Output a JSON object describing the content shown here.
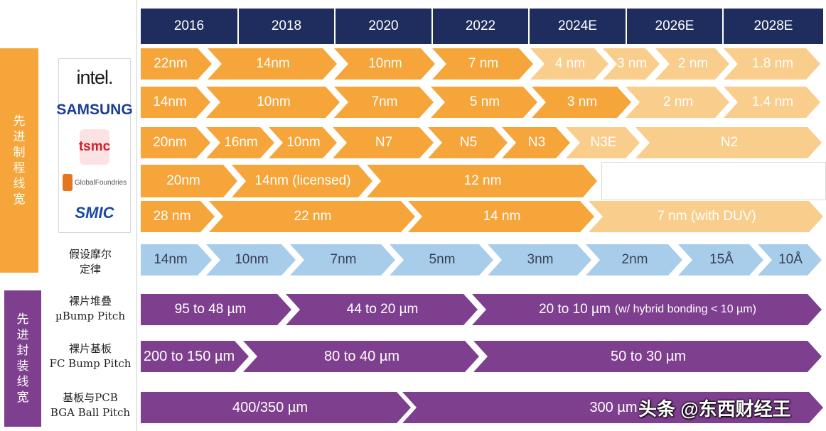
{
  "years": [
    "2016",
    "2018",
    "2020",
    "2022",
    "2024E",
    "2026E",
    "2028E"
  ],
  "categories": {
    "process": [
      "先",
      "进",
      "制",
      "程",
      "线",
      "宽"
    ],
    "packaging": [
      "先",
      "进",
      "封",
      "装",
      "线",
      "宽"
    ]
  },
  "colors": {
    "navy": "#1f2d5e",
    "orange": "#f5a53a",
    "light_orange": "#f9cd8c",
    "light_blue": "#a8cdea",
    "purple": "#7e3f8f"
  },
  "logos": {
    "intel": "intel.",
    "samsung": "SAMSUNG",
    "tsmc": "tsmc",
    "globalfoundries": "GlobalFoundries",
    "smic": "SMIC"
  },
  "row_labels": {
    "moore": [
      "假设摩尔",
      "定律"
    ],
    "ubump": [
      "裸片堆叠",
      "µBump Pitch"
    ],
    "fcbump": [
      "裸片基板",
      "FC Bump Pitch"
    ],
    "bga": [
      "基板与PCB",
      "BGA Ball Pitch"
    ]
  },
  "rows": {
    "intel": [
      "22nm",
      "14nm",
      "10nm",
      "7 nm",
      "4 nm",
      "3 nm",
      "2 nm",
      "1.8 nm"
    ],
    "samsung": [
      "14nm",
      "10nm",
      "7nm",
      "5 nm",
      "3 nm",
      "2 nm",
      "1.4 nm"
    ],
    "tsmc": [
      "20nm",
      "16nm",
      "10nm",
      "N7",
      "N5",
      "N3",
      "N3E",
      "N2"
    ],
    "globalfoundries": [
      "20nm",
      "14nm (licensed)",
      "12 nm"
    ],
    "smic": [
      "28 nm",
      "22 nm",
      "14 nm",
      "7 nm (with DUV)"
    ],
    "moore": [
      "14nm",
      "10nm",
      "7nm",
      "5nm",
      "3nm",
      "2nm",
      "15Å",
      "10Å"
    ],
    "ubump": [
      "95 to 48 µm",
      "44 to 20 µm",
      "20 to 10 µm",
      "(w/ hybrid bonding < 10 µm)"
    ],
    "fcbump": [
      "200 to 150 µm",
      "80 to 40 µm",
      "50 to 30 µm"
    ],
    "bga": [
      "400/350 µm",
      "300 µm"
    ]
  },
  "watermark": "头条 @东西财经王"
}
